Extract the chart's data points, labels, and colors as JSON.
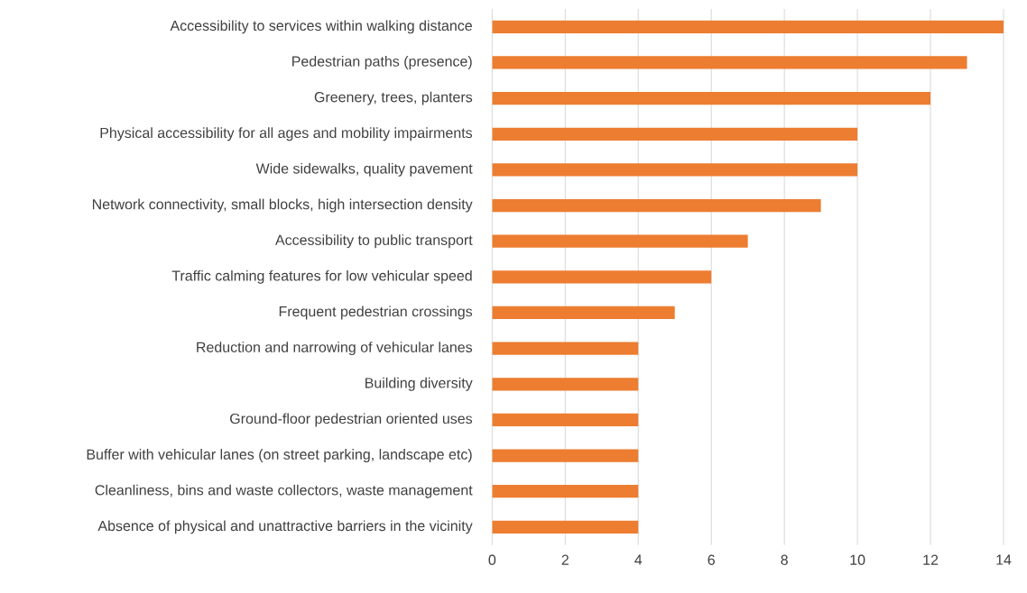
{
  "chart_data": {
    "type": "bar",
    "orientation": "horizontal",
    "categories": [
      "Accessibility to services within walking distance",
      "Pedestrian paths (presence)",
      "Greenery, trees, planters",
      "Physical accessibility for all ages and mobility impairments",
      "Wide sidewalks, quality pavement",
      "Network connectivity, small blocks, high intersection density",
      "Accessibility to public transport",
      "Traffic calming features for low vehicular speed",
      "Frequent pedestrian crossings",
      "Reduction and narrowing of vehicular lanes",
      "Building diversity",
      "Ground-floor pedestrian oriented uses",
      "Buffer with vehicular lanes (on street parking, landscape etc)",
      "Cleanliness, bins and waste collectors, waste management",
      "Absence of physical and unattractive barriers in the vicinity"
    ],
    "values": [
      14,
      13,
      12,
      10,
      10,
      9,
      7,
      6,
      5,
      4,
      4,
      4,
      4,
      4,
      4
    ],
    "color": "#ed7d31",
    "xlim": [
      0,
      14
    ],
    "xticks": [
      0,
      2,
      4,
      6,
      8,
      10,
      12,
      14
    ],
    "grid": "x"
  }
}
